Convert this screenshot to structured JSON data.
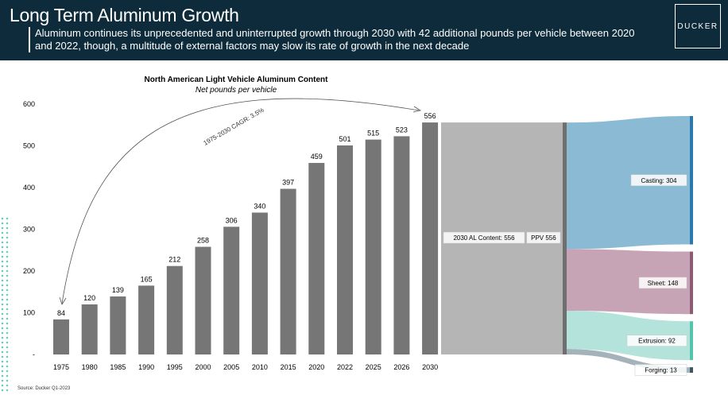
{
  "header": {
    "title": "Long Term Aluminum Growth",
    "subtitle": "Aluminum continues its unprecedented and uninterrupted growth through 2030 with 42 additional pounds per vehicle between 2020 and 2022, though, a multitude of external factors may slow its rate of growth in the next decade",
    "logo_text": "DUCKER"
  },
  "source": "Source: Ducker Q1-2023",
  "chart_data": [
    {
      "type": "bar",
      "title": "North American Light Vehicle Aluminum Content",
      "subtitle": "Net pounds per vehicle",
      "categories": [
        "1975",
        "1980",
        "1985",
        "1990",
        "1995",
        "2000",
        "2005",
        "2010",
        "2015",
        "2020",
        "2022",
        "2025",
        "2026",
        "2030"
      ],
      "values": [
        84,
        120,
        139,
        165,
        212,
        258,
        306,
        340,
        397,
        459,
        501,
        515,
        523,
        556
      ],
      "ylim": [
        0,
        600
      ],
      "yticks": [
        "-",
        "100",
        "200",
        "300",
        "400",
        "500",
        "600"
      ],
      "annotation": "1975-2030 CAGR: 3.5%",
      "bar_color": "#767676"
    },
    {
      "type": "sankey",
      "source_node": "2030 AL Content: 556",
      "middle_node": "PPV 556",
      "targets": [
        {
          "label": "Casting: 304",
          "value": 304,
          "color": "#8bbbd4",
          "bar_color": "#2a78ad"
        },
        {
          "label": "Sheet: 148",
          "value": 148,
          "color": "#c6a3b5",
          "bar_color": "#8c5a75"
        },
        {
          "label": "Extrusion: 92",
          "value": 92,
          "color": "#b3e3da",
          "bar_color": "#54c4ad"
        },
        {
          "label": "Forging: 13",
          "value": 13,
          "color": "#a4b3ba",
          "bar_color": "#3c5663"
        }
      ]
    }
  ]
}
